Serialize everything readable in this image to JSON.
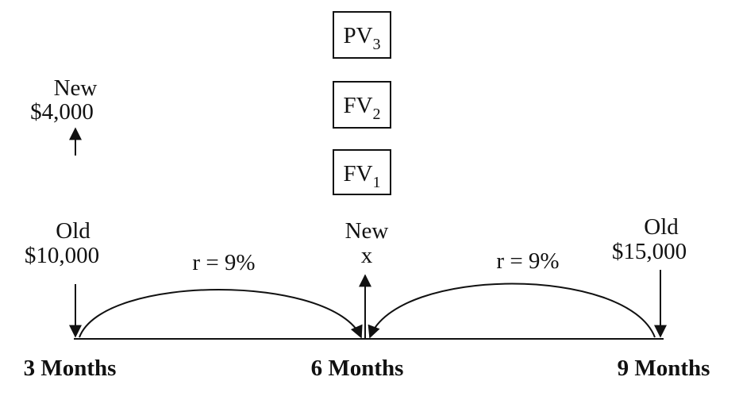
{
  "boxes": [
    {
      "main": "PV",
      "sub": "3"
    },
    {
      "main": "FV",
      "sub": "2"
    },
    {
      "main": "FV",
      "sub": "1"
    }
  ],
  "new_payment": {
    "label": "New",
    "amount": "$4,000"
  },
  "timeline": {
    "points": [
      {
        "label": "3 Months",
        "flow_label": "Old",
        "amount": "$10,000"
      },
      {
        "label": "6 Months",
        "flow_label": "New",
        "amount": "x"
      },
      {
        "label": "9 Months",
        "flow_label": "Old",
        "amount": "$15,000"
      }
    ],
    "rates": [
      "r = 9%",
      "r = 9%"
    ]
  }
}
